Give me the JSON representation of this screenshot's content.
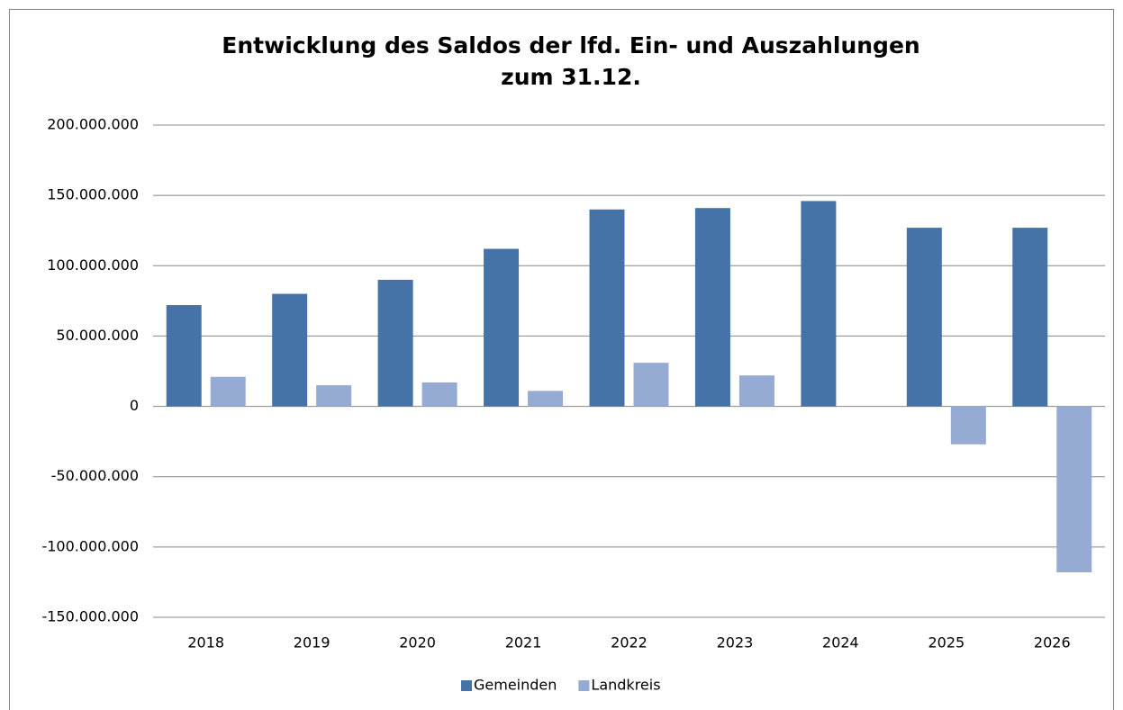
{
  "chart_data": {
    "type": "bar",
    "title": [
      "Entwicklung des Saldos der lfd. Ein- und Auszahlungen",
      "zum 31.12."
    ],
    "categories": [
      "2018",
      "2019",
      "2020",
      "2021",
      "2022",
      "2023",
      "2024",
      "2025",
      "2026"
    ],
    "series": [
      {
        "name": "Gemeinden",
        "color": "#4572a7",
        "values": [
          72000000,
          80000000,
          90000000,
          112000000,
          140000000,
          141000000,
          146000000,
          127000000,
          127000000
        ]
      },
      {
        "name": "Landkreis",
        "color": "#95abd3",
        "values": [
          21000000,
          15000000,
          17000000,
          11000000,
          31000000,
          22000000,
          0,
          -27000000,
          -118000000
        ]
      }
    ],
    "ylim": [
      -150000000,
      200000000
    ],
    "yticks": [
      {
        "value": -150000000,
        "label": "-150.000.000"
      },
      {
        "value": -100000000,
        "label": "-100.000.000"
      },
      {
        "value": -50000000,
        "label": "-50.000.000"
      },
      0,
      {
        "value": 50000000,
        "label": "50.000.000"
      },
      {
        "value": 100000000,
        "label": "100.000.000"
      },
      {
        "value": 150000000,
        "label": "150.000.000"
      },
      {
        "value": 200000000,
        "label": "200.000.000"
      }
    ],
    "grid": true,
    "legend": "bottom"
  }
}
